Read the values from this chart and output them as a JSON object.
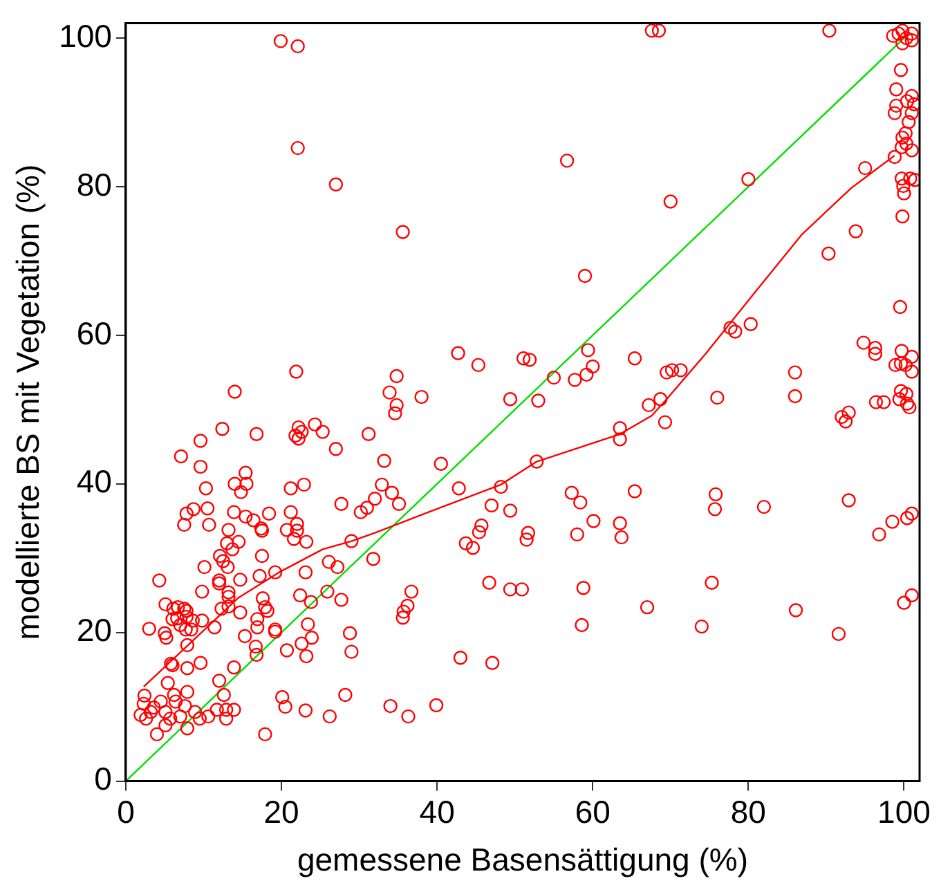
{
  "chart_data": {
    "type": "scatter",
    "xlabel": "gemessene Basensättigung (%)",
    "ylabel": "modellierte BS mit Vegetation (%)",
    "xlim": [
      0,
      102
    ],
    "ylim": [
      0,
      102
    ],
    "xticks": [
      0,
      20,
      40,
      60,
      80,
      100
    ],
    "yticks": [
      0,
      20,
      40,
      60,
      80,
      100
    ],
    "grid": false,
    "legend": false,
    "series": [
      {
        "color": "#ff0000",
        "marker": "circle",
        "x": [
          19.9,
          22.1,
          22.1,
          27,
          35.6,
          56.7,
          80,
          70,
          59,
          95,
          93.8,
          90.3,
          99.5,
          94.8,
          96.3,
          96.3,
          77.7,
          78.3,
          80.3,
          59.4,
          60,
          59.2,
          57.7,
          55,
          51.1,
          51.9,
          65.4,
          69.5,
          70.2,
          71.3,
          86,
          86,
          76,
          68.7,
          67.2,
          53,
          49.4,
          69.3,
          63.5,
          63.5,
          52.8,
          57.3,
          58.4,
          65.4,
          75.8,
          75.7,
          82,
          92.9,
          101,
          100.4,
          96.8,
          98.5,
          49.4,
          51.7,
          51.5,
          58,
          60.1,
          63.5,
          63.7,
          49.4,
          50.9,
          58.8,
          75.3,
          58.6,
          67,
          74,
          86.1,
          91.6,
          100,
          101,
          92,
          92.9,
          92.5,
          96.4,
          97.4,
          99.4,
          100.4,
          100.7,
          99.6,
          99,
          101,
          100.4,
          101.3,
          99,
          98.8,
          101,
          100.6,
          100.2,
          99.8,
          100.3,
          99.7,
          101,
          98.8,
          99.7,
          100.8,
          101.4,
          99.9,
          100,
          99.8,
          99.7,
          101,
          98.9,
          99.6,
          100.2,
          101,
          99.6,
          100.3,
          67.6,
          68.5,
          90.4,
          98.6,
          99.8,
          101,
          101,
          99.3,
          100.3,
          99.8,
          42.7,
          45.3,
          21.9,
          14,
          34.8,
          33.9,
          34.8,
          38,
          34.6,
          12.4,
          9.6,
          16.8,
          22.2,
          21.8,
          22.6,
          22.2,
          24.3,
          25.3,
          27,
          31.2,
          7.1,
          9.6,
          33.2,
          40.5,
          15.4,
          15.5,
          14,
          14.8,
          10.3,
          21.2,
          22.9,
          32.9,
          34.2,
          35.1,
          32,
          31,
          30.2,
          27.7,
          42.8,
          48.2,
          47,
          7.8,
          8.7,
          10.5,
          7.5,
          10.7,
          13.9,
          15.4,
          16.4,
          17.5,
          17.4,
          18.4,
          13.2,
          21.2,
          22,
          22,
          20.7,
          21.6,
          23.2,
          29,
          45.7,
          45.4,
          43.7,
          44.6,
          13,
          14.5,
          13.7,
          12.1,
          12.5,
          13.1,
          10.1,
          17.5,
          19.2,
          23.1,
          26.1,
          27.2,
          31.8,
          4.3,
          9.8,
          12,
          12,
          14.7,
          17.2,
          13.2,
          13.2,
          22.4,
          25.9,
          27.7,
          23.8,
          36.7,
          36.2,
          35.7,
          35.6,
          46.7,
          5.1,
          6.1,
          6.7,
          7.5,
          7.8,
          6,
          6.6,
          7.8,
          8.6,
          7,
          7.7,
          8.4,
          7.9,
          3,
          5,
          5.2,
          9.8,
          11.4,
          12.3,
          13.2,
          14.7,
          17.9,
          18.2,
          16.9,
          16.9,
          16.7,
          19.2,
          19.2,
          15.3,
          17.6,
          23.4,
          23.9,
          22.6,
          23.2,
          20.7,
          28.8,
          29,
          5.8,
          6,
          7.9,
          9.6,
          13.9,
          16.8,
          12,
          43,
          47.1,
          2.4,
          2.3,
          1.9,
          2.6,
          3.6,
          4,
          3.2,
          4.5,
          5.1,
          5.4,
          6.2,
          6.4,
          7.9,
          7.6,
          5.7,
          5.1,
          7,
          7.9,
          8.9,
          9.5,
          10.6,
          11.7,
          12.6,
          12.9,
          12.9,
          13.9,
          17.9,
          20.1,
          20.5,
          23.1,
          26.2,
          28.2,
          34,
          36.3,
          39.9
        ],
        "values": [
          99.6,
          98.9,
          85.2,
          80.3,
          73.9,
          83.5,
          81,
          78,
          68,
          82.5,
          74,
          71,
          63.8,
          59,
          58.3,
          57.5,
          61,
          60.5,
          61.5,
          58,
          55.8,
          54.7,
          54,
          54.3,
          56.9,
          56.7,
          56.9,
          55,
          55.3,
          55.3,
          55,
          51.8,
          51.6,
          51.4,
          50.6,
          51.2,
          51.4,
          48.3,
          47.5,
          46,
          43,
          38.8,
          37.5,
          39,
          38.6,
          36.6,
          36.9,
          37.8,
          36,
          35.4,
          33.2,
          34.9,
          36.4,
          33.4,
          32.5,
          33.2,
          35,
          34.7,
          32.8,
          25.8,
          25.8,
          26,
          26.7,
          21,
          23.4,
          20.8,
          23,
          19.8,
          24,
          25,
          49,
          49.6,
          48.4,
          51,
          51,
          51.4,
          50.8,
          50.3,
          95.7,
          93.1,
          92.2,
          91.5,
          91.1,
          90.9,
          89.9,
          89.9,
          88.7,
          87.2,
          86.6,
          85.8,
          85.3,
          84.9,
          84,
          81.1,
          81.1,
          80.9,
          80.1,
          79.1,
          76,
          57.9,
          57.1,
          56,
          56.2,
          56,
          55.1,
          52.5,
          52.1,
          101,
          101,
          101,
          100.3,
          101,
          100.6,
          99.7,
          100.6,
          100,
          99.3,
          57.6,
          56,
          55.1,
          52.4,
          54.5,
          52.3,
          50.6,
          51.7,
          49.5,
          47.4,
          45.8,
          46.7,
          47.6,
          46.5,
          47,
          46.1,
          48,
          47,
          44.7,
          46.7,
          43.7,
          42.3,
          43.1,
          42.7,
          41.5,
          40,
          40,
          38.9,
          39.4,
          39.4,
          39.9,
          39.9,
          38.8,
          37.3,
          38,
          36.8,
          36.2,
          37.3,
          39.4,
          39.6,
          37.1,
          36,
          36.6,
          36.7,
          34.5,
          34.5,
          36.2,
          35.6,
          35.1,
          33.7,
          34,
          36,
          33.8,
          36.2,
          34.6,
          33.7,
          33.8,
          32.6,
          32.2,
          32.3,
          34.4,
          33.5,
          32,
          31.4,
          32,
          32.2,
          31.2,
          30.3,
          29.6,
          28.8,
          28.8,
          30.3,
          28.1,
          28.1,
          29.5,
          28.8,
          29.9,
          27,
          25.5,
          27,
          26.6,
          27.1,
          27.6,
          25.4,
          24.8,
          25,
          25.5,
          24.4,
          24.1,
          25.5,
          23.6,
          22.8,
          22,
          26.7,
          23.8,
          23.2,
          23.4,
          23.2,
          22.9,
          21.8,
          21.9,
          22.1,
          21.6,
          21,
          20.4,
          20.4,
          18.3,
          20.5,
          19.9,
          19.3,
          21.6,
          20.7,
          23.2,
          23.5,
          22.7,
          23.4,
          22.9,
          21.8,
          20.7,
          18.1,
          20.4,
          20.1,
          19.5,
          24.6,
          21.1,
          19.3,
          18.5,
          16.8,
          17.6,
          19.9,
          17.4,
          15.8,
          15.6,
          15.2,
          15.9,
          15.3,
          17,
          13.5,
          16.6,
          15.9,
          11.5,
          10.4,
          8.9,
          8.4,
          9.9,
          6.3,
          9.3,
          10.7,
          9.3,
          13.2,
          11.6,
          10.7,
          12,
          10.1,
          8.4,
          7.5,
          8.7,
          7.1,
          9.3,
          8.4,
          8.7,
          9.6,
          11.6,
          9.6,
          8.4,
          9.6,
          6.3,
          11.3,
          10,
          9.5,
          8.7,
          11.6,
          10.1,
          8.7,
          10.2
        ]
      },
      {
        "type": "line",
        "color": "#ff0000",
        "marker": "none",
        "x": [
          2.3,
          8.2,
          14.5,
          19.7,
          25.3,
          29,
          32,
          38.9,
          48.2,
          52.8,
          63.5,
          67.6,
          69.5,
          74.5,
          80.7,
          86.9,
          93.2,
          98.8
        ],
        "values": [
          12.7,
          18.5,
          24.7,
          28.1,
          31.2,
          32.3,
          33.4,
          36.2,
          39.9,
          43,
          46.7,
          49.2,
          51.4,
          57.5,
          65.6,
          73.6,
          79.8,
          84.2
        ]
      },
      {
        "type": "line",
        "color": "#00dd00",
        "marker": "none",
        "x": [
          0,
          100
        ],
        "values": [
          0,
          100
        ]
      }
    ]
  }
}
